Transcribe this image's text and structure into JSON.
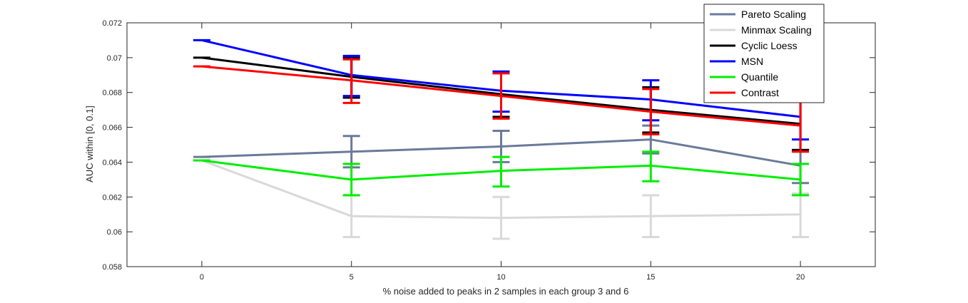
{
  "chart_data": {
    "type": "line",
    "xlabel": "% noise added to peaks in 2 samples in each group 3 and 6",
    "ylabel": "AUC within [0, 0.1]",
    "x": [
      0,
      5,
      10,
      15,
      20
    ],
    "xlim": [
      -2.5,
      22.5
    ],
    "ylim": [
      0.058,
      0.072
    ],
    "xticks": [
      0,
      5,
      10,
      15,
      20
    ],
    "xtick_labels": [
      "0",
      "5",
      "10",
      "15",
      "20"
    ],
    "yticks": [
      0.058,
      0.06,
      0.062,
      0.064,
      0.066,
      0.068,
      0.07,
      0.072
    ],
    "ytick_labels": [
      "0.058",
      "0.06",
      "0.062",
      "0.064",
      "0.066",
      "0.068",
      "0.07",
      "0.072"
    ],
    "grid": false,
    "legend_position": "top-right",
    "error_bars": true,
    "series": [
      {
        "name": "Pareto Scaling",
        "color": "#6a7a9a",
        "values": [
          0.0643,
          0.0646,
          0.0649,
          0.0653,
          0.0638
        ],
        "err_low": [
          0.0643,
          0.0637,
          0.064,
          0.0645,
          0.0628
        ],
        "err_high": [
          0.0643,
          0.0655,
          0.0658,
          0.0661,
          0.0647
        ]
      },
      {
        "name": "Minmax Scaling",
        "color": "#d9d9d9",
        "values": [
          0.0641,
          0.0609,
          0.0608,
          0.0609,
          0.061
        ],
        "err_low": [
          0.0641,
          0.0597,
          0.0596,
          0.0597,
          0.0597
        ],
        "err_high": [
          0.0641,
          0.0621,
          0.062,
          0.0621,
          0.0622
        ]
      },
      {
        "name": "Cyclic Loess",
        "color": "#000000",
        "values": [
          0.07,
          0.0689,
          0.0679,
          0.067,
          0.0662
        ],
        "err_low": [
          0.07,
          0.0677,
          0.0666,
          0.0657,
          0.0647
        ],
        "err_high": [
          0.07,
          0.07,
          0.0692,
          0.0683,
          0.0676
        ]
      },
      {
        "name": "MSN",
        "color": "#0000ff",
        "values": [
          0.071,
          0.069,
          0.0681,
          0.0676,
          0.0666
        ],
        "err_low": [
          0.071,
          0.0678,
          0.0669,
          0.0664,
          0.0653
        ],
        "err_high": [
          0.071,
          0.0701,
          0.0692,
          0.0687,
          0.0678
        ]
      },
      {
        "name": "Quantile",
        "color": "#00ee00",
        "values": [
          0.0641,
          0.063,
          0.0635,
          0.0638,
          0.063
        ],
        "err_low": [
          0.0641,
          0.0621,
          0.0626,
          0.0629,
          0.0621
        ],
        "err_high": [
          0.0641,
          0.0639,
          0.0643,
          0.0646,
          0.0639
        ]
      },
      {
        "name": "Contrast",
        "color": "#ff0000",
        "values": [
          0.0695,
          0.0687,
          0.0678,
          0.0669,
          0.0661
        ],
        "err_low": [
          0.0695,
          0.0674,
          0.0665,
          0.0656,
          0.0646
        ],
        "err_high": [
          0.0695,
          0.0699,
          0.0691,
          0.0682,
          0.0675
        ]
      }
    ]
  }
}
